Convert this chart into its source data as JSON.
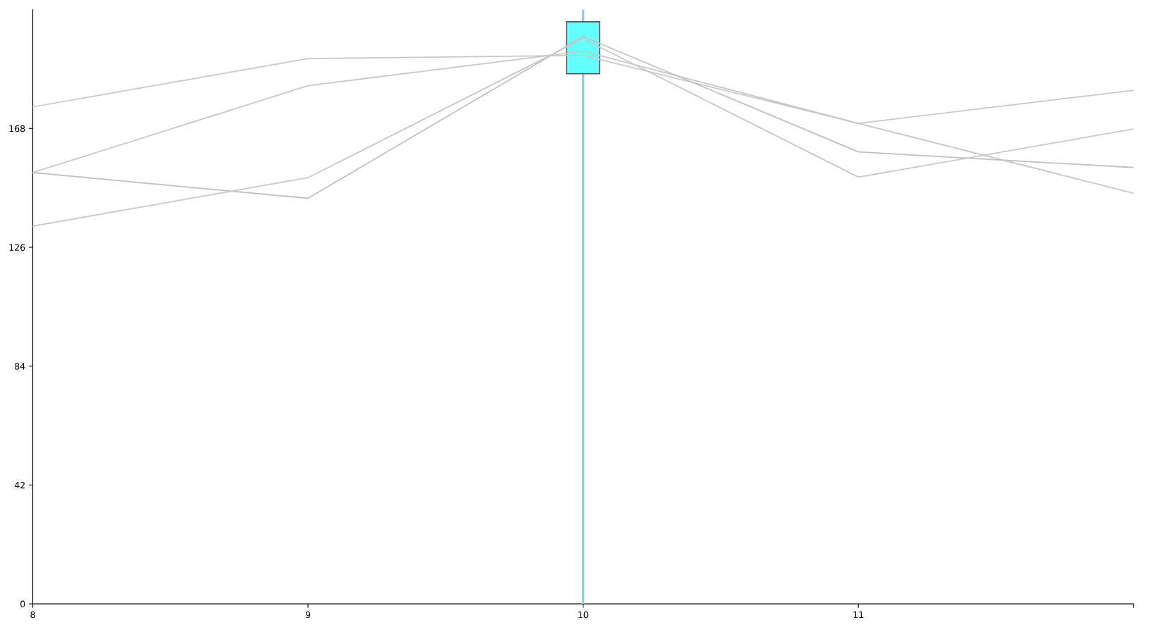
{
  "chart_data": {
    "type": "line",
    "x": [
      8,
      9,
      10,
      11,
      12
    ],
    "series": [
      {
        "color": "#c8c8c8",
        "values": [
          175.6,
          192.7,
          193.8,
          169.8,
          181.5
        ]
      },
      {
        "color": "#c8c8c8",
        "values": [
          152.4,
          183.1,
          195.3,
          169.8,
          145.1
        ]
      },
      {
        "color": "#c0c0c0",
        "values": [
          152.4,
          143.3,
          200.5,
          159.7,
          154.2
        ]
      },
      {
        "color": "#c8c8c8",
        "values": [
          133.5,
          150.6,
          199.7,
          150.8,
          167.8
        ]
      }
    ],
    "xlim": [
      8,
      12
    ],
    "xticks": [
      8,
      9,
      10,
      11,
      {
        "value": 12,
        "label": null
      }
    ],
    "ylim": [
      0,
      210
    ],
    "yticks": [
      0,
      42,
      84,
      126,
      168
    ],
    "ref_lines": [
      {
        "axis": "x",
        "value": 10,
        "color": "#9ecae1"
      }
    ],
    "grid": false,
    "marker": "none",
    "line_style": "solid"
  }
}
